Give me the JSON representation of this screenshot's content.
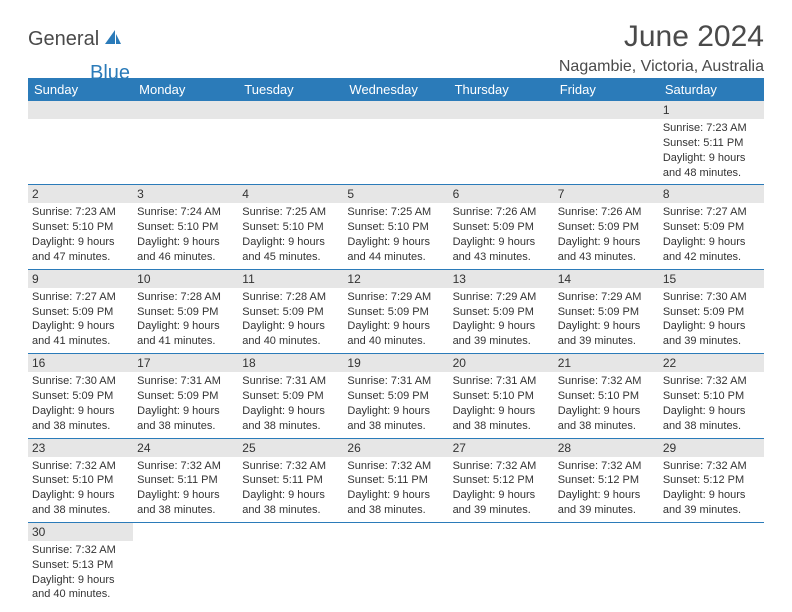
{
  "logo": {
    "general": "General",
    "blue": "Blue"
  },
  "title": "June 2024",
  "location": "Nagambie, Victoria, Australia",
  "colors": {
    "header_bg": "#2b7bb9",
    "header_text": "#ffffff",
    "daynum_bg": "#e6e6e6",
    "border": "#2b7bb9",
    "text": "#333333",
    "logo_gray": "#4a4a4a",
    "logo_blue": "#2b7bb9"
  },
  "days_of_week": [
    "Sunday",
    "Monday",
    "Tuesday",
    "Wednesday",
    "Thursday",
    "Friday",
    "Saturday"
  ],
  "weeks": [
    [
      null,
      null,
      null,
      null,
      null,
      null,
      {
        "n": "1",
        "sunrise": "Sunrise: 7:23 AM",
        "sunset": "Sunset: 5:11 PM",
        "daylight1": "Daylight: 9 hours",
        "daylight2": "and 48 minutes."
      }
    ],
    [
      {
        "n": "2",
        "sunrise": "Sunrise: 7:23 AM",
        "sunset": "Sunset: 5:10 PM",
        "daylight1": "Daylight: 9 hours",
        "daylight2": "and 47 minutes."
      },
      {
        "n": "3",
        "sunrise": "Sunrise: 7:24 AM",
        "sunset": "Sunset: 5:10 PM",
        "daylight1": "Daylight: 9 hours",
        "daylight2": "and 46 minutes."
      },
      {
        "n": "4",
        "sunrise": "Sunrise: 7:25 AM",
        "sunset": "Sunset: 5:10 PM",
        "daylight1": "Daylight: 9 hours",
        "daylight2": "and 45 minutes."
      },
      {
        "n": "5",
        "sunrise": "Sunrise: 7:25 AM",
        "sunset": "Sunset: 5:10 PM",
        "daylight1": "Daylight: 9 hours",
        "daylight2": "and 44 minutes."
      },
      {
        "n": "6",
        "sunrise": "Sunrise: 7:26 AM",
        "sunset": "Sunset: 5:09 PM",
        "daylight1": "Daylight: 9 hours",
        "daylight2": "and 43 minutes."
      },
      {
        "n": "7",
        "sunrise": "Sunrise: 7:26 AM",
        "sunset": "Sunset: 5:09 PM",
        "daylight1": "Daylight: 9 hours",
        "daylight2": "and 43 minutes."
      },
      {
        "n": "8",
        "sunrise": "Sunrise: 7:27 AM",
        "sunset": "Sunset: 5:09 PM",
        "daylight1": "Daylight: 9 hours",
        "daylight2": "and 42 minutes."
      }
    ],
    [
      {
        "n": "9",
        "sunrise": "Sunrise: 7:27 AM",
        "sunset": "Sunset: 5:09 PM",
        "daylight1": "Daylight: 9 hours",
        "daylight2": "and 41 minutes."
      },
      {
        "n": "10",
        "sunrise": "Sunrise: 7:28 AM",
        "sunset": "Sunset: 5:09 PM",
        "daylight1": "Daylight: 9 hours",
        "daylight2": "and 41 minutes."
      },
      {
        "n": "11",
        "sunrise": "Sunrise: 7:28 AM",
        "sunset": "Sunset: 5:09 PM",
        "daylight1": "Daylight: 9 hours",
        "daylight2": "and 40 minutes."
      },
      {
        "n": "12",
        "sunrise": "Sunrise: 7:29 AM",
        "sunset": "Sunset: 5:09 PM",
        "daylight1": "Daylight: 9 hours",
        "daylight2": "and 40 minutes."
      },
      {
        "n": "13",
        "sunrise": "Sunrise: 7:29 AM",
        "sunset": "Sunset: 5:09 PM",
        "daylight1": "Daylight: 9 hours",
        "daylight2": "and 39 minutes."
      },
      {
        "n": "14",
        "sunrise": "Sunrise: 7:29 AM",
        "sunset": "Sunset: 5:09 PM",
        "daylight1": "Daylight: 9 hours",
        "daylight2": "and 39 minutes."
      },
      {
        "n": "15",
        "sunrise": "Sunrise: 7:30 AM",
        "sunset": "Sunset: 5:09 PM",
        "daylight1": "Daylight: 9 hours",
        "daylight2": "and 39 minutes."
      }
    ],
    [
      {
        "n": "16",
        "sunrise": "Sunrise: 7:30 AM",
        "sunset": "Sunset: 5:09 PM",
        "daylight1": "Daylight: 9 hours",
        "daylight2": "and 38 minutes."
      },
      {
        "n": "17",
        "sunrise": "Sunrise: 7:31 AM",
        "sunset": "Sunset: 5:09 PM",
        "daylight1": "Daylight: 9 hours",
        "daylight2": "and 38 minutes."
      },
      {
        "n": "18",
        "sunrise": "Sunrise: 7:31 AM",
        "sunset": "Sunset: 5:09 PM",
        "daylight1": "Daylight: 9 hours",
        "daylight2": "and 38 minutes."
      },
      {
        "n": "19",
        "sunrise": "Sunrise: 7:31 AM",
        "sunset": "Sunset: 5:09 PM",
        "daylight1": "Daylight: 9 hours",
        "daylight2": "and 38 minutes."
      },
      {
        "n": "20",
        "sunrise": "Sunrise: 7:31 AM",
        "sunset": "Sunset: 5:10 PM",
        "daylight1": "Daylight: 9 hours",
        "daylight2": "and 38 minutes."
      },
      {
        "n": "21",
        "sunrise": "Sunrise: 7:32 AM",
        "sunset": "Sunset: 5:10 PM",
        "daylight1": "Daylight: 9 hours",
        "daylight2": "and 38 minutes."
      },
      {
        "n": "22",
        "sunrise": "Sunrise: 7:32 AM",
        "sunset": "Sunset: 5:10 PM",
        "daylight1": "Daylight: 9 hours",
        "daylight2": "and 38 minutes."
      }
    ],
    [
      {
        "n": "23",
        "sunrise": "Sunrise: 7:32 AM",
        "sunset": "Sunset: 5:10 PM",
        "daylight1": "Daylight: 9 hours",
        "daylight2": "and 38 minutes."
      },
      {
        "n": "24",
        "sunrise": "Sunrise: 7:32 AM",
        "sunset": "Sunset: 5:11 PM",
        "daylight1": "Daylight: 9 hours",
        "daylight2": "and 38 minutes."
      },
      {
        "n": "25",
        "sunrise": "Sunrise: 7:32 AM",
        "sunset": "Sunset: 5:11 PM",
        "daylight1": "Daylight: 9 hours",
        "daylight2": "and 38 minutes."
      },
      {
        "n": "26",
        "sunrise": "Sunrise: 7:32 AM",
        "sunset": "Sunset: 5:11 PM",
        "daylight1": "Daylight: 9 hours",
        "daylight2": "and 38 minutes."
      },
      {
        "n": "27",
        "sunrise": "Sunrise: 7:32 AM",
        "sunset": "Sunset: 5:12 PM",
        "daylight1": "Daylight: 9 hours",
        "daylight2": "and 39 minutes."
      },
      {
        "n": "28",
        "sunrise": "Sunrise: 7:32 AM",
        "sunset": "Sunset: 5:12 PM",
        "daylight1": "Daylight: 9 hours",
        "daylight2": "and 39 minutes."
      },
      {
        "n": "29",
        "sunrise": "Sunrise: 7:32 AM",
        "sunset": "Sunset: 5:12 PM",
        "daylight1": "Daylight: 9 hours",
        "daylight2": "and 39 minutes."
      }
    ],
    [
      {
        "n": "30",
        "sunrise": "Sunrise: 7:32 AM",
        "sunset": "Sunset: 5:13 PM",
        "daylight1": "Daylight: 9 hours",
        "daylight2": "and 40 minutes."
      },
      null,
      null,
      null,
      null,
      null,
      null
    ]
  ]
}
